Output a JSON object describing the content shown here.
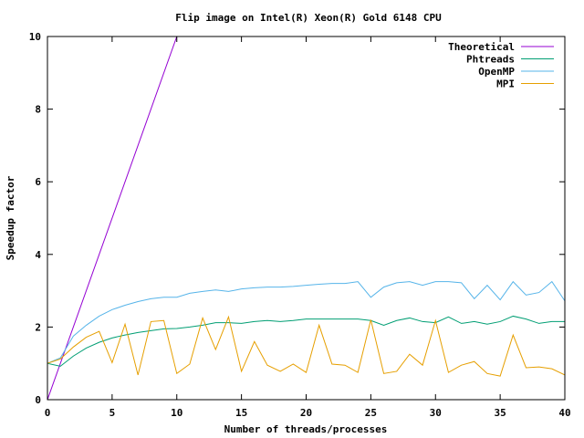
{
  "chart_data": {
    "type": "line",
    "title": "Flip image on Intel(R) Xeon(R) Gold 6148 CPU",
    "xlabel": "Number of threads/processes",
    "ylabel": "Speedup factor",
    "xlim": [
      0,
      40
    ],
    "ylim": [
      0,
      10
    ],
    "xticks": [
      0,
      5,
      10,
      15,
      20,
      25,
      30,
      35,
      40
    ],
    "yticks": [
      0,
      2,
      4,
      6,
      8,
      10
    ],
    "grid": false,
    "legend_position": "top-right",
    "series": [
      {
        "name": "Theoretical",
        "color": "#9400d3",
        "x": [
          0,
          10
        ],
        "y": [
          0,
          10
        ]
      },
      {
        "name": "Phtreads",
        "color": "#009e73",
        "x": [
          0,
          1,
          2,
          3,
          4,
          5,
          6,
          7,
          8,
          9,
          10,
          11,
          12,
          13,
          14,
          15,
          16,
          17,
          18,
          19,
          20,
          21,
          22,
          23,
          24,
          25,
          26,
          27,
          28,
          29,
          30,
          31,
          32,
          33,
          34,
          35,
          36,
          37,
          38,
          39,
          40
        ],
        "y": [
          1.0,
          0.92,
          1.2,
          1.42,
          1.58,
          1.7,
          1.78,
          1.85,
          1.9,
          1.95,
          1.96,
          2.0,
          2.05,
          2.12,
          2.12,
          2.1,
          2.15,
          2.18,
          2.15,
          2.18,
          2.22,
          2.22,
          2.22,
          2.22,
          2.22,
          2.18,
          2.05,
          2.18,
          2.25,
          2.15,
          2.12,
          2.28,
          2.1,
          2.15,
          2.08,
          2.15,
          2.3,
          2.22,
          2.1,
          2.15,
          2.15
        ]
      },
      {
        "name": "OpenMP",
        "color": "#56b4e9",
        "x": [
          0,
          1,
          2,
          3,
          4,
          5,
          6,
          7,
          8,
          9,
          10,
          11,
          12,
          13,
          14,
          15,
          16,
          17,
          18,
          19,
          20,
          21,
          22,
          23,
          24,
          25,
          26,
          27,
          28,
          29,
          30,
          31,
          32,
          33,
          34,
          35,
          36,
          37,
          38,
          39,
          40
        ],
        "y": [
          1.0,
          1.15,
          1.75,
          2.05,
          2.3,
          2.48,
          2.6,
          2.7,
          2.78,
          2.82,
          2.82,
          2.93,
          2.98,
          3.02,
          2.98,
          3.05,
          3.08,
          3.1,
          3.1,
          3.12,
          3.15,
          3.18,
          3.2,
          3.2,
          3.25,
          2.82,
          3.1,
          3.22,
          3.25,
          3.15,
          3.25,
          3.25,
          3.22,
          2.78,
          3.15,
          2.75,
          3.25,
          2.88,
          2.95,
          3.25,
          2.72
        ]
      },
      {
        "name": "MPI",
        "color": "#e69f00",
        "x": [
          0,
          1,
          2,
          3,
          4,
          5,
          6,
          7,
          8,
          9,
          10,
          11,
          12,
          13,
          14,
          15,
          16,
          17,
          18,
          19,
          20,
          21,
          22,
          23,
          24,
          25,
          26,
          27,
          28,
          29,
          30,
          31,
          32,
          33,
          34,
          35,
          36,
          37,
          38,
          39,
          40
        ],
        "y": [
          1.0,
          1.12,
          1.45,
          1.72,
          1.88,
          1.02,
          2.08,
          0.68,
          2.15,
          2.18,
          0.72,
          0.98,
          2.25,
          1.38,
          2.28,
          0.78,
          1.6,
          0.95,
          0.78,
          0.98,
          0.75,
          2.05,
          0.98,
          0.95,
          0.75,
          2.2,
          0.72,
          0.78,
          1.25,
          0.95,
          2.18,
          0.75,
          0.95,
          1.05,
          0.72,
          0.65,
          1.78,
          0.88,
          0.9,
          0.85,
          0.68
        ]
      }
    ]
  }
}
